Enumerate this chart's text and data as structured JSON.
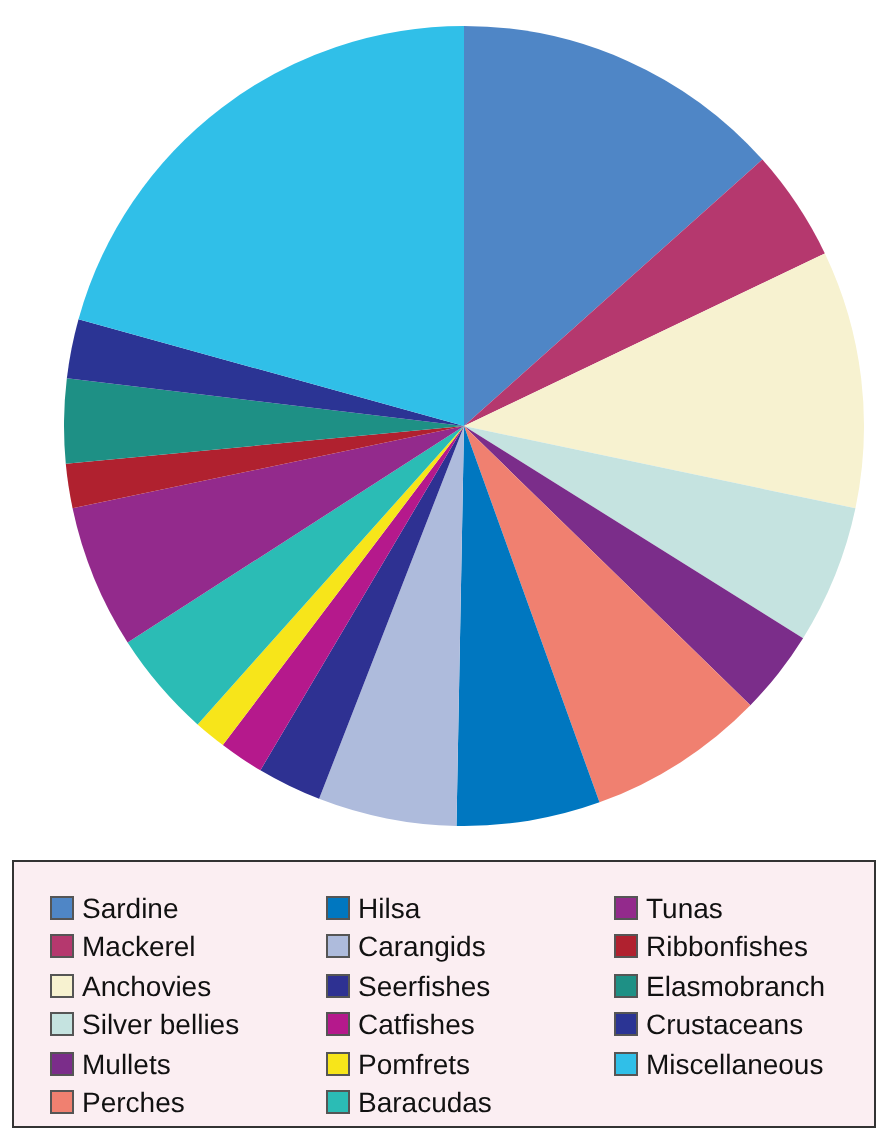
{
  "chart_data": {
    "type": "pie",
    "categories": [
      "Sardine",
      "Mackerel",
      "Anchovies",
      "Silver bellies",
      "Mullets",
      "Perches",
      "Hilsa",
      "Carangids",
      "Seerfishes",
      "Catfishes",
      "Pomfrets",
      "Baracudas",
      "Tunas",
      "Ribbonfishes",
      "Elasmobranch",
      "Crustaceans",
      "Miscellaneous"
    ],
    "values": [
      13.4,
      4.5,
      10.4,
      5.6,
      3.4,
      7.2,
      5.8,
      5.6,
      2.6,
      1.8,
      1.3,
      4.3,
      5.8,
      1.8,
      3.4,
      2.4,
      20.7
    ],
    "colors": [
      "#4f86c6",
      "#b5386e",
      "#f7f2d0",
      "#c5e3e0",
      "#7b2d8a",
      "#f08070",
      "#0077c0",
      "#aebbdc",
      "#2e3192",
      "#b5198c",
      "#f7e51a",
      "#2bbcb5",
      "#932a8c",
      "#b0212f",
      "#1e9085",
      "#2b3494",
      "#30bfe8"
    ],
    "legend": "bottom"
  }
}
